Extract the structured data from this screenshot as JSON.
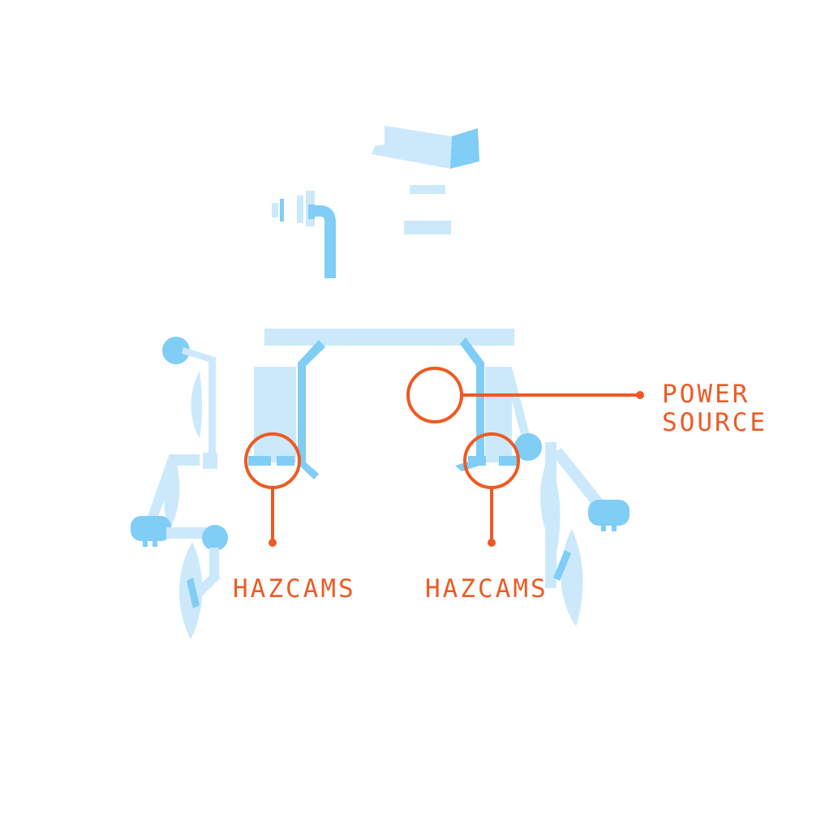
{
  "colors": {
    "rover_light": "#cbe9fb",
    "rover_mid": "#80cdf5",
    "callout": "#ee5a24",
    "background": "#ffffff"
  },
  "callouts": {
    "power_source": {
      "line1": "POWER",
      "line2": "SOURCE"
    },
    "hazcams_left": {
      "label": "HAZCAMS"
    },
    "hazcams_right": {
      "label": "HAZCAMS"
    }
  }
}
